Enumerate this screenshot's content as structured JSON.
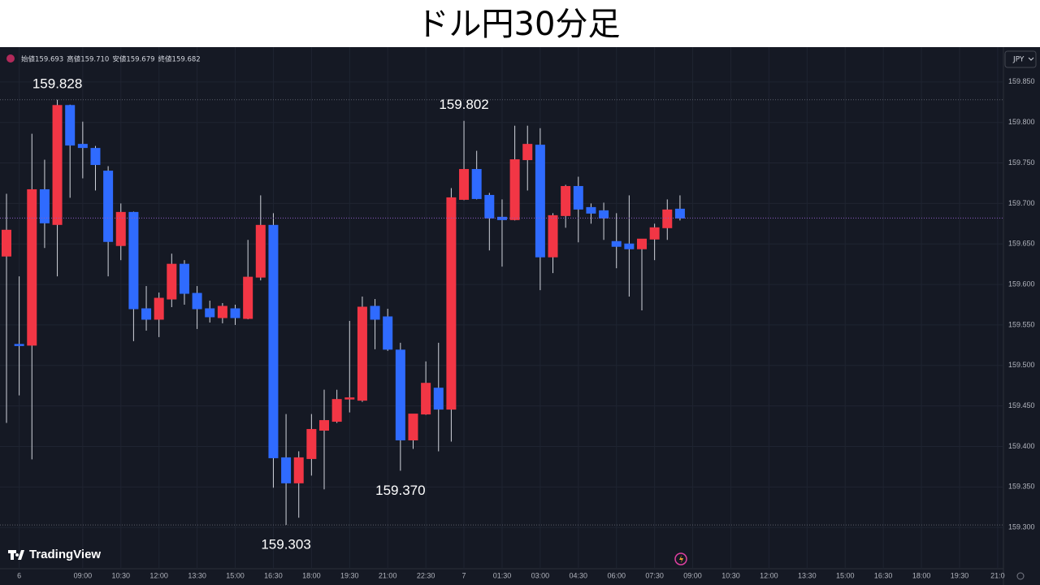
{
  "chart_data": {
    "type": "candlestick",
    "title": "ドル円30分足",
    "brand": "TradingView",
    "currency": "JPY",
    "ohlc_legend": [
      {
        "label": "始値",
        "text": "159.693"
      },
      {
        "label": "高値",
        "text": "159.710"
      },
      {
        "label": "安値",
        "text": "159.679"
      },
      {
        "label": "終値",
        "text": "159.682"
      }
    ],
    "up_color": "#f23645",
    "down_color": "#2f6bff",
    "grid": true,
    "categories": [
      null,
      "6",
      null,
      null,
      null,
      null,
      "09:00",
      null,
      null,
      "10:30",
      null,
      null,
      "12:00",
      null,
      null,
      "13:30",
      null,
      null,
      "15:00",
      null,
      null,
      "16:30",
      null,
      null,
      "18:00",
      null,
      null,
      "19:30",
      null,
      null,
      "21:00",
      null,
      null,
      "22:30",
      null,
      null,
      "7",
      null,
      null,
      "01:30",
      null,
      null,
      "03:00",
      null,
      null,
      "04:30",
      null,
      null,
      "06:00",
      null,
      null,
      "07:30",
      null,
      null,
      "09:00",
      null,
      null,
      "10:30",
      null,
      null,
      "12:00",
      null,
      null,
      "13:30",
      null,
      null,
      "15:00",
      null,
      null,
      "16:30",
      null,
      null,
      "18:00",
      null,
      null,
      "19:30",
      null,
      null,
      "21:0"
    ],
    "open": [
      159.635,
      159.526,
      159.525,
      159.717,
      159.674,
      159.821,
      159.773,
      159.768,
      159.74,
      159.648,
      159.689,
      159.57,
      159.557,
      159.582,
      159.625,
      159.589,
      159.57,
      159.559,
      159.57,
      159.558,
      159.609,
      159.673,
      159.386,
      159.355,
      159.385,
      159.42,
      159.431,
      159.459,
      159.457,
      159.573,
      159.56,
      159.519,
      159.408,
      159.44,
      159.472,
      159.446,
      159.705,
      159.742,
      159.71,
      159.683,
      159.68,
      159.754,
      159.772,
      159.634,
      159.685,
      159.721,
      159.695,
      159.691,
      159.653,
      159.65,
      159.644,
      159.656,
      159.67,
      159.693,
      null,
      null,
      null,
      null,
      null,
      null,
      null,
      null,
      null,
      null,
      null,
      null,
      null,
      null,
      null,
      null,
      null,
      null,
      null,
      null,
      null,
      null,
      null,
      null,
      null
    ],
    "high": [
      159.712,
      159.61,
      159.786,
      159.754,
      159.828,
      159.822,
      159.801,
      159.771,
      159.746,
      159.7,
      159.69,
      159.598,
      159.59,
      159.638,
      159.63,
      159.598,
      159.58,
      159.577,
      159.575,
      159.655,
      159.71,
      159.688,
      159.44,
      159.394,
      159.44,
      159.47,
      159.47,
      159.555,
      159.585,
      159.582,
      159.57,
      159.528,
      159.44,
      159.505,
      159.528,
      159.719,
      159.802,
      159.765,
      159.713,
      159.705,
      159.796,
      159.796,
      159.793,
      159.688,
      159.723,
      159.733,
      159.7,
      159.701,
      159.688,
      159.71,
      159.656,
      159.675,
      159.705,
      159.71,
      null,
      null,
      null,
      null,
      null,
      null,
      null,
      null,
      null,
      null,
      null,
      null,
      null,
      null,
      null,
      null,
      null,
      null,
      null,
      null,
      null,
      null,
      null,
      null,
      null
    ],
    "low": [
      159.429,
      159.463,
      159.384,
      159.645,
      159.61,
      159.707,
      159.731,
      159.716,
      159.61,
      159.63,
      159.53,
      159.543,
      159.535,
      159.572,
      159.575,
      159.545,
      159.553,
      159.552,
      159.55,
      159.557,
      159.605,
      159.349,
      159.303,
      159.312,
      159.364,
      159.347,
      159.429,
      159.442,
      159.455,
      159.52,
      159.518,
      159.37,
      159.397,
      159.439,
      159.394,
      159.406,
      159.704,
      159.705,
      159.642,
      159.622,
      159.679,
      159.716,
      159.593,
      159.614,
      159.67,
      159.652,
      159.675,
      159.655,
      159.62,
      159.585,
      159.568,
      159.63,
      159.655,
      159.679,
      null,
      null,
      null,
      null,
      null,
      null,
      null,
      null,
      null,
      null,
      null,
      null,
      null,
      null,
      null,
      null,
      null,
      null,
      null,
      null,
      null,
      null,
      null,
      null,
      null
    ],
    "close": [
      159.667,
      159.525,
      159.717,
      159.676,
      159.821,
      159.772,
      159.769,
      159.748,
      159.653,
      159.689,
      159.57,
      159.557,
      159.583,
      159.625,
      159.589,
      159.57,
      159.56,
      159.573,
      159.559,
      159.609,
      159.673,
      159.386,
      159.355,
      159.386,
      159.421,
      159.432,
      159.458,
      159.46,
      159.572,
      159.557,
      159.52,
      159.408,
      159.44,
      159.478,
      159.446,
      159.707,
      159.742,
      159.706,
      159.682,
      159.68,
      159.754,
      159.773,
      159.634,
      159.685,
      159.721,
      159.693,
      159.688,
      159.682,
      159.647,
      159.644,
      159.656,
      159.67,
      159.692,
      159.682,
      null,
      null,
      null,
      null,
      null,
      null,
      null,
      null,
      null,
      null,
      null,
      null,
      null,
      null,
      null,
      null,
      null,
      null,
      null,
      null,
      null,
      null,
      null,
      null,
      null
    ],
    "ylim": [
      159.249,
      159.893
    ],
    "yticks": [
      {
        "value": 159.85,
        "label": "159.850"
      },
      {
        "value": 159.8,
        "label": "159.800"
      },
      {
        "value": 159.75,
        "label": "159.750"
      },
      {
        "value": 159.7,
        "label": "159.700"
      },
      {
        "value": 159.65,
        "label": "159.650"
      },
      {
        "value": 159.6,
        "label": "159.600"
      },
      {
        "value": 159.55,
        "label": "159.550"
      },
      {
        "value": 159.5,
        "label": "159.500"
      },
      {
        "value": 159.45,
        "label": "159.450"
      },
      {
        "value": 159.4,
        "label": "159.400"
      },
      {
        "value": 159.35,
        "label": "159.350"
      },
      {
        "value": 159.3,
        "label": "159.300"
      }
    ],
    "annotations": [
      {
        "value": 159.828,
        "label": "159.828"
      },
      {
        "value": 159.802,
        "label": "159.802"
      },
      {
        "value": 159.37,
        "label": "159.370"
      },
      {
        "value": 159.303,
        "label": "159.303"
      }
    ]
  }
}
